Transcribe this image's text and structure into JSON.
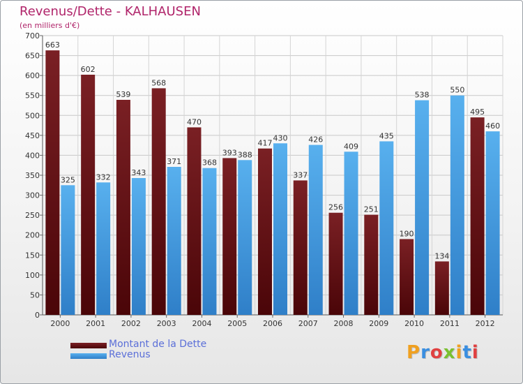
{
  "header": {
    "title": "Revenus/Dette - KALHAUSEN",
    "subtitle": "(en milliers d'€)"
  },
  "chart_data": {
    "type": "bar",
    "title": "Revenus/Dette - KALHAUSEN",
    "subtitle": "(en milliers d'€)",
    "categories": [
      "2000",
      "2001",
      "2002",
      "2003",
      "2004",
      "2005",
      "2006",
      "2007",
      "2008",
      "2009",
      "2010",
      "2011",
      "2012"
    ],
    "series": [
      {
        "name": "Montant de la Dette",
        "values": [
          663,
          602,
          539,
          568,
          470,
          393,
          417,
          337,
          256,
          251,
          190,
          134,
          495
        ],
        "color": "#6b1418"
      },
      {
        "name": "Revenus",
        "values": [
          325,
          332,
          343,
          371,
          368,
          388,
          430,
          426,
          409,
          435,
          538,
          550,
          460
        ],
        "color": "#4aa3e6"
      }
    ],
    "ylim": [
      0,
      700
    ],
    "yticks": [
      "0",
      "50",
      "100",
      "150",
      "200",
      "250",
      "300",
      "350",
      "400",
      "450",
      "500",
      "550",
      "600",
      "650",
      "700"
    ],
    "grid": true,
    "legend_position": "bottom-left"
  },
  "legend": {
    "debt_label": "Montant de la Dette",
    "revenue_label": "Revenus"
  },
  "logo": {
    "letters": [
      "P",
      "r",
      "o",
      "x",
      "i",
      "t",
      "i"
    ],
    "colors": [
      "#f0a020",
      "#3a8ee0",
      "#e04040",
      "#7ac030",
      "#f0a020",
      "#3a8ee0",
      "#e04040"
    ]
  }
}
